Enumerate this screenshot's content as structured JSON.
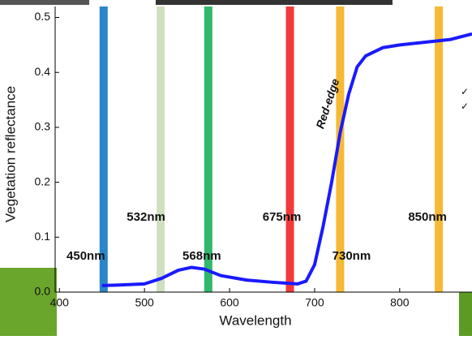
{
  "chart_data": {
    "type": "line",
    "x_label": "Wavelength",
    "y_label": "Vegetation reflectance",
    "x": [
      450,
      470,
      500,
      520,
      540,
      555,
      570,
      590,
      620,
      650,
      680,
      690,
      700,
      710,
      720,
      730,
      740,
      750,
      760,
      780,
      800,
      830,
      860,
      885
    ],
    "series": [
      {
        "color": "#1a1aff",
        "values": [
          0.012,
          0.013,
          0.015,
          0.025,
          0.04,
          0.045,
          0.042,
          0.03,
          0.022,
          0.018,
          0.015,
          0.02,
          0.05,
          0.12,
          0.2,
          0.29,
          0.36,
          0.41,
          0.43,
          0.445,
          0.45,
          0.455,
          0.46,
          0.47
        ]
      }
    ],
    "xlim": [
      395,
      885
    ],
    "xticks": [
      400,
      500,
      600,
      700,
      800
    ],
    "ylim": [
      0,
      0.52
    ],
    "yticks": [
      {
        "value": 0,
        "label": "0.0"
      },
      0.1,
      0.2,
      0.3,
      0.4,
      0.5
    ],
    "bands": [
      {
        "x": 452,
        "color": "#2a86c8"
      },
      {
        "x": 519,
        "color": "#cfe0c0"
      },
      {
        "x": 575,
        "color": "#2fb86c"
      },
      {
        "x": 671,
        "color": "#f23a3a"
      },
      {
        "x": 730,
        "color": "#f6b935"
      },
      {
        "x": 846,
        "color": "#f6b935"
      }
    ],
    "band_labels": [
      "450nm",
      "532nm",
      "568nm",
      "675nm",
      "730nm",
      "850nm"
    ],
    "annotation": "Red-edge",
    "side_marks": [
      "✓",
      "✓"
    ]
  }
}
